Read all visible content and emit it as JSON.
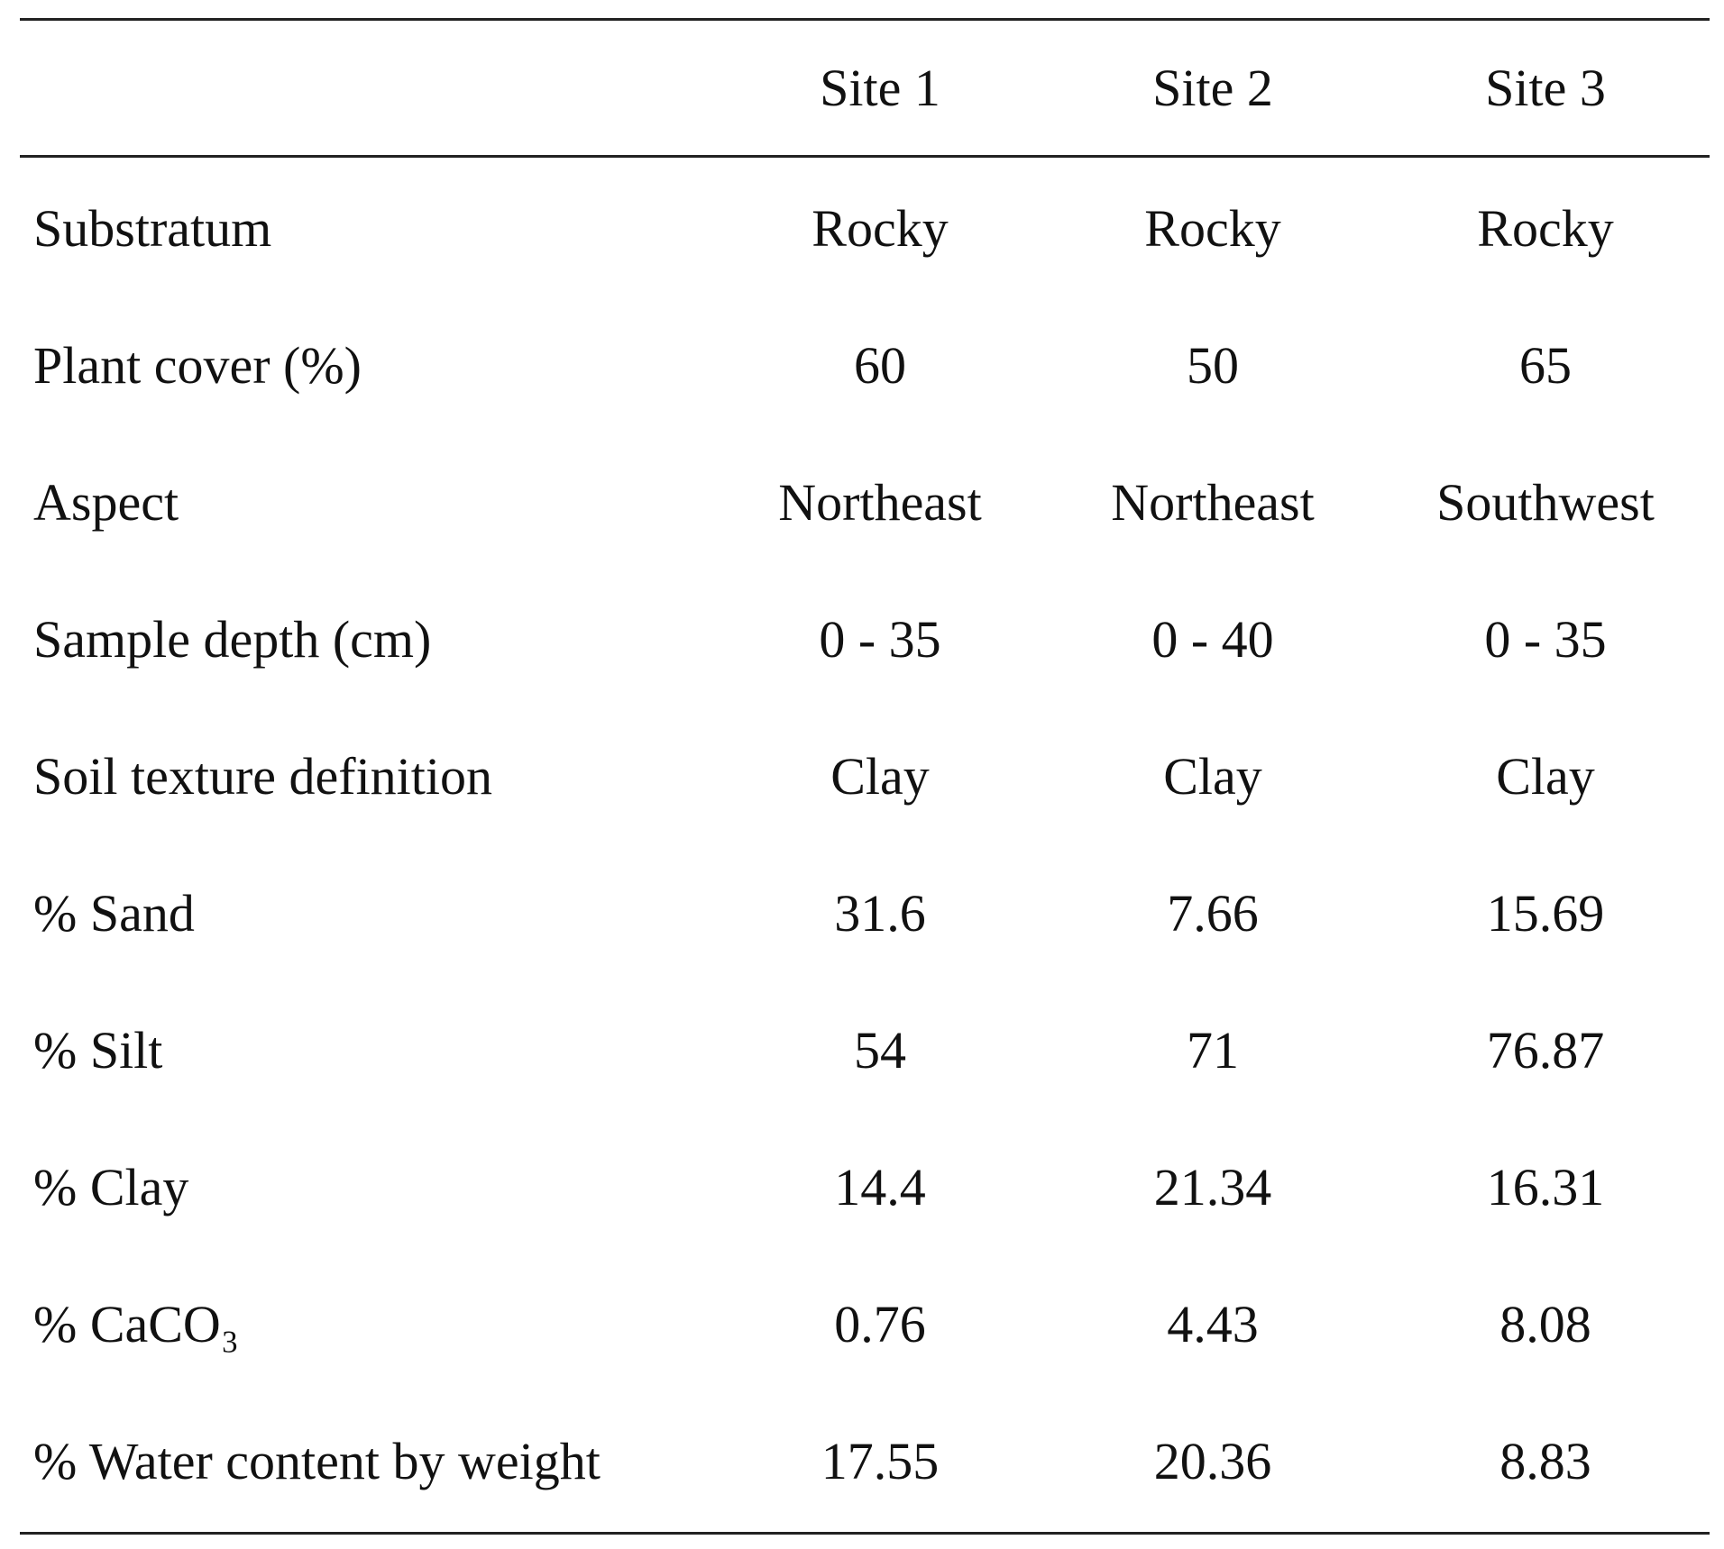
{
  "table": {
    "columns": [
      "Site 1",
      "Site 2",
      "Site 3"
    ],
    "rows": [
      {
        "label": "Substratum",
        "cells": [
          "Rocky",
          "Rocky",
          "Rocky"
        ]
      },
      {
        "label": "Plant cover (%)",
        "cells": [
          60,
          50,
          65
        ]
      },
      {
        "label": "Aspect",
        "cells": [
          "Northeast",
          "Northeast",
          "Southwest"
        ]
      },
      {
        "label": "Sample depth (cm)",
        "cells": [
          "0 - 35",
          "0 - 40",
          "0 - 35"
        ]
      },
      {
        "label": "Soil texture definition",
        "cells": [
          "Clay",
          "Clay",
          "Clay"
        ]
      },
      {
        "label": "% Sand",
        "cells": [
          31.6,
          7.66,
          15.69
        ]
      },
      {
        "label": "% Silt",
        "cells": [
          54,
          71,
          76.87
        ]
      },
      {
        "label": "% Clay",
        "cells": [
          14.4,
          21.34,
          16.31
        ]
      },
      {
        "label": "% CaCO₃",
        "cells": [
          0.76,
          4.43,
          8.08
        ]
      },
      {
        "label": "% Water content by weight",
        "cells": [
          17.55,
          20.36,
          8.83
        ]
      }
    ]
  }
}
